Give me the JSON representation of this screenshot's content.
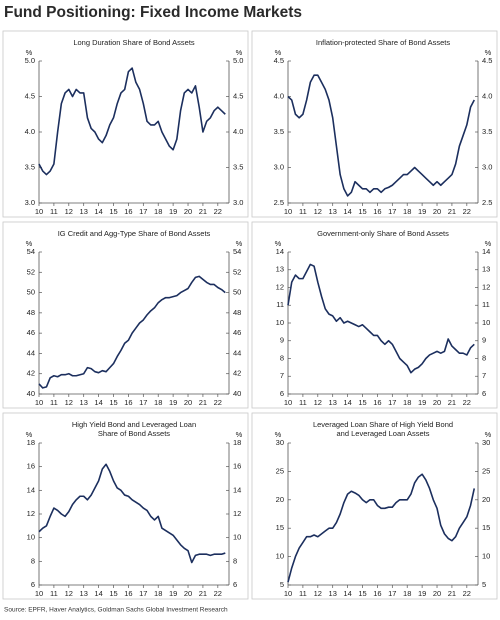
{
  "title": "Fund Positioning: Fixed Income Markets",
  "source": "Source: EPFR, Haver Analytics, Goldman Sachs Global Investment Research",
  "chart_data": [
    {
      "type": "line",
      "title": [
        "Long Duration Share of Bond Assets"
      ],
      "ylabel": "%",
      "color": "#1c2f5e",
      "x": [
        2010,
        2010.25,
        2010.5,
        2010.75,
        2011,
        2011.25,
        2011.5,
        2011.75,
        2012,
        2012.25,
        2012.5,
        2012.75,
        2013,
        2013.25,
        2013.5,
        2013.75,
        2014,
        2014.25,
        2014.5,
        2014.75,
        2015,
        2015.25,
        2015.5,
        2015.75,
        2016,
        2016.25,
        2016.5,
        2016.75,
        2017,
        2017.25,
        2017.5,
        2017.75,
        2018,
        2018.25,
        2018.5,
        2018.75,
        2019,
        2019.25,
        2019.5,
        2019.75,
        2020,
        2020.25,
        2020.5,
        2020.75,
        2021,
        2021.25,
        2021.5,
        2021.75,
        2022,
        2022.25,
        2022.5
      ],
      "values": [
        3.55,
        3.45,
        3.4,
        3.45,
        3.55,
        4.0,
        4.4,
        4.55,
        4.6,
        4.5,
        4.6,
        4.55,
        4.55,
        4.2,
        4.05,
        4.0,
        3.9,
        3.85,
        3.95,
        4.1,
        4.2,
        4.4,
        4.55,
        4.6,
        4.85,
        4.9,
        4.7,
        4.6,
        4.4,
        4.15,
        4.1,
        4.1,
        4.15,
        4.0,
        3.9,
        3.8,
        3.75,
        3.9,
        4.3,
        4.55,
        4.6,
        4.55,
        4.65,
        4.35,
        4.0,
        4.15,
        4.2,
        4.3,
        4.35,
        4.3,
        4.25
      ],
      "xlim": [
        2010,
        2022.75
      ],
      "xticks": [
        {
          "value": 2010,
          "label": "10"
        },
        {
          "value": 2011,
          "label": "11"
        },
        {
          "value": 2012,
          "label": "12"
        },
        {
          "value": 2013,
          "label": "13"
        },
        {
          "value": 2014,
          "label": "14"
        },
        {
          "value": 2015,
          "label": "15"
        },
        {
          "value": 2016,
          "label": "16"
        },
        {
          "value": 2017,
          "label": "17"
        },
        {
          "value": 2018,
          "label": "18"
        },
        {
          "value": 2019,
          "label": "19"
        },
        {
          "value": 2020,
          "label": "20"
        },
        {
          "value": 2021,
          "label": "21"
        },
        {
          "value": 2022,
          "label": "22"
        }
      ],
      "ylim": [
        3,
        5
      ],
      "yticks": [
        {
          "value": 3,
          "label": "3.0"
        },
        3.5,
        {
          "value": 4,
          "label": "4.0"
        },
        4.5,
        {
          "value": 5,
          "label": "5.0"
        }
      ]
    },
    {
      "type": "line",
      "title": [
        "Inflation-protected Share of Bond Assets"
      ],
      "ylabel": "%",
      "color": "#1c2f5e",
      "x": [
        2010,
        2010.25,
        2010.5,
        2010.75,
        2011,
        2011.25,
        2011.5,
        2011.75,
        2012,
        2012.25,
        2012.5,
        2012.75,
        2013,
        2013.25,
        2013.5,
        2013.75,
        2014,
        2014.25,
        2014.5,
        2014.75,
        2015,
        2015.25,
        2015.5,
        2015.75,
        2016,
        2016.25,
        2016.5,
        2016.75,
        2017,
        2017.25,
        2017.5,
        2017.75,
        2018,
        2018.25,
        2018.5,
        2018.75,
        2019,
        2019.25,
        2019.5,
        2019.75,
        2020,
        2020.25,
        2020.5,
        2020.75,
        2021,
        2021.25,
        2021.5,
        2021.75,
        2022,
        2022.25,
        2022.5
      ],
      "values": [
        4.0,
        3.95,
        3.75,
        3.7,
        3.75,
        3.95,
        4.2,
        4.3,
        4.3,
        4.2,
        4.1,
        3.95,
        3.7,
        3.3,
        2.9,
        2.7,
        2.6,
        2.65,
        2.8,
        2.75,
        2.7,
        2.7,
        2.65,
        2.7,
        2.7,
        2.65,
        2.7,
        2.72,
        2.75,
        2.8,
        2.85,
        2.9,
        2.9,
        2.95,
        3.0,
        2.95,
        2.9,
        2.85,
        2.8,
        2.75,
        2.8,
        2.75,
        2.8,
        2.85,
        2.9,
        3.05,
        3.3,
        3.45,
        3.6,
        3.85,
        3.95
      ],
      "xlim": [
        2010,
        2022.75
      ],
      "xticks": [
        {
          "value": 2010,
          "label": "10"
        },
        {
          "value": 2011,
          "label": "11"
        },
        {
          "value": 2012,
          "label": "12"
        },
        {
          "value": 2013,
          "label": "13"
        },
        {
          "value": 2014,
          "label": "14"
        },
        {
          "value": 2015,
          "label": "15"
        },
        {
          "value": 2016,
          "label": "16"
        },
        {
          "value": 2017,
          "label": "17"
        },
        {
          "value": 2018,
          "label": "18"
        },
        {
          "value": 2019,
          "label": "19"
        },
        {
          "value": 2020,
          "label": "20"
        },
        {
          "value": 2021,
          "label": "21"
        },
        {
          "value": 2022,
          "label": "22"
        }
      ],
      "ylim": [
        2.5,
        4.5
      ],
      "yticks": [
        2.5,
        {
          "value": 3,
          "label": "3.0"
        },
        3.5,
        {
          "value": 4,
          "label": "4.0"
        },
        4.5
      ]
    },
    {
      "type": "line",
      "title": [
        "IG Credit and Agg-Type Share of Bond Assets"
      ],
      "ylabel": "%",
      "color": "#1c2f5e",
      "x": [
        2010,
        2010.25,
        2010.5,
        2010.75,
        2011,
        2011.25,
        2011.5,
        2011.75,
        2012,
        2012.25,
        2012.5,
        2012.75,
        2013,
        2013.25,
        2013.5,
        2013.75,
        2014,
        2014.25,
        2014.5,
        2014.75,
        2015,
        2015.25,
        2015.5,
        2015.75,
        2016,
        2016.25,
        2016.5,
        2016.75,
        2017,
        2017.25,
        2017.5,
        2017.75,
        2018,
        2018.25,
        2018.5,
        2018.75,
        2019,
        2019.25,
        2019.5,
        2019.75,
        2020,
        2020.25,
        2020.5,
        2020.75,
        2021,
        2021.25,
        2021.5,
        2021.75,
        2022,
        2022.25,
        2022.5
      ],
      "values": [
        41.0,
        40.6,
        40.7,
        41.6,
        41.8,
        41.7,
        41.9,
        41.9,
        42.0,
        41.8,
        41.8,
        41.9,
        42.0,
        42.6,
        42.5,
        42.2,
        42.1,
        42.3,
        42.2,
        42.6,
        43.0,
        43.7,
        44.3,
        45.0,
        45.3,
        46.0,
        46.5,
        47.0,
        47.3,
        47.8,
        48.2,
        48.5,
        49.0,
        49.3,
        49.5,
        49.5,
        49.6,
        49.7,
        50.0,
        50.2,
        50.4,
        51.0,
        51.5,
        51.6,
        51.3,
        51.0,
        50.8,
        50.8,
        50.5,
        50.3,
        50.0
      ],
      "xlim": [
        2010,
        2022.75
      ],
      "xticks": [
        {
          "value": 2010,
          "label": "10"
        },
        {
          "value": 2011,
          "label": "11"
        },
        {
          "value": 2012,
          "label": "12"
        },
        {
          "value": 2013,
          "label": "13"
        },
        {
          "value": 2014,
          "label": "14"
        },
        {
          "value": 2015,
          "label": "15"
        },
        {
          "value": 2016,
          "label": "16"
        },
        {
          "value": 2017,
          "label": "17"
        },
        {
          "value": 2018,
          "label": "18"
        },
        {
          "value": 2019,
          "label": "19"
        },
        {
          "value": 2020,
          "label": "20"
        },
        {
          "value": 2021,
          "label": "21"
        },
        {
          "value": 2022,
          "label": "22"
        }
      ],
      "ylim": [
        40,
        54
      ],
      "yticks": [
        40,
        42,
        44,
        46,
        48,
        50,
        52,
        54
      ]
    },
    {
      "type": "line",
      "title": [
        "Government-only Share of Bond Assets"
      ],
      "ylabel": "%",
      "color": "#1c2f5e",
      "x": [
        2010,
        2010.25,
        2010.5,
        2010.75,
        2011,
        2011.25,
        2011.5,
        2011.75,
        2012,
        2012.25,
        2012.5,
        2012.75,
        2013,
        2013.25,
        2013.5,
        2013.75,
        2014,
        2014.25,
        2014.5,
        2014.75,
        2015,
        2015.25,
        2015.5,
        2015.75,
        2016,
        2016.25,
        2016.5,
        2016.75,
        2017,
        2017.25,
        2017.5,
        2017.75,
        2018,
        2018.25,
        2018.5,
        2018.75,
        2019,
        2019.25,
        2019.5,
        2019.75,
        2020,
        2020.25,
        2020.5,
        2020.75,
        2021,
        2021.25,
        2021.5,
        2021.75,
        2022,
        2022.25,
        2022.5
      ],
      "values": [
        11.0,
        12.3,
        12.7,
        12.5,
        12.5,
        12.9,
        13.3,
        13.2,
        12.3,
        11.5,
        10.8,
        10.5,
        10.4,
        10.1,
        10.3,
        10.0,
        10.1,
        10.0,
        9.9,
        9.8,
        9.9,
        9.7,
        9.5,
        9.3,
        9.3,
        9.0,
        8.8,
        9.0,
        8.8,
        8.4,
        8.0,
        7.8,
        7.6,
        7.2,
        7.4,
        7.5,
        7.7,
        8.0,
        8.2,
        8.3,
        8.4,
        8.3,
        8.4,
        9.1,
        8.7,
        8.5,
        8.3,
        8.3,
        8.2,
        8.6,
        8.8
      ],
      "xlim": [
        2010,
        2022.75
      ],
      "xticks": [
        {
          "value": 2010,
          "label": "10"
        },
        {
          "value": 2011,
          "label": "11"
        },
        {
          "value": 2012,
          "label": "12"
        },
        {
          "value": 2013,
          "label": "13"
        },
        {
          "value": 2014,
          "label": "14"
        },
        {
          "value": 2015,
          "label": "15"
        },
        {
          "value": 2016,
          "label": "16"
        },
        {
          "value": 2017,
          "label": "17"
        },
        {
          "value": 2018,
          "label": "18"
        },
        {
          "value": 2019,
          "label": "19"
        },
        {
          "value": 2020,
          "label": "20"
        },
        {
          "value": 2021,
          "label": "21"
        },
        {
          "value": 2022,
          "label": "22"
        }
      ],
      "ylim": [
        6,
        14
      ],
      "yticks": [
        6,
        7,
        8,
        9,
        10,
        11,
        12,
        13,
        14
      ]
    },
    {
      "type": "line",
      "title": [
        "High Yield Bond and Leveraged Loan",
        "Share of Bond Assets"
      ],
      "ylabel": "%",
      "color": "#1c2f5e",
      "x": [
        2010,
        2010.25,
        2010.5,
        2010.75,
        2011,
        2011.25,
        2011.5,
        2011.75,
        2012,
        2012.25,
        2012.5,
        2012.75,
        2013,
        2013.25,
        2013.5,
        2013.75,
        2014,
        2014.25,
        2014.5,
        2014.75,
        2015,
        2015.25,
        2015.5,
        2015.75,
        2016,
        2016.25,
        2016.5,
        2016.75,
        2017,
        2017.25,
        2017.5,
        2017.75,
        2018,
        2018.25,
        2018.5,
        2018.75,
        2019,
        2019.25,
        2019.5,
        2019.75,
        2020,
        2020.25,
        2020.5,
        2020.75,
        2021,
        2021.25,
        2021.5,
        2021.75,
        2022,
        2022.25,
        2022.5
      ],
      "values": [
        10.5,
        10.8,
        11.0,
        11.8,
        12.5,
        12.3,
        12.0,
        11.8,
        12.2,
        12.8,
        13.2,
        13.5,
        13.5,
        13.2,
        13.6,
        14.2,
        14.8,
        15.8,
        16.2,
        15.6,
        14.8,
        14.2,
        14.0,
        13.6,
        13.5,
        13.2,
        13.0,
        12.8,
        12.5,
        12.3,
        11.8,
        11.5,
        11.8,
        10.8,
        10.6,
        10.4,
        10.2,
        9.8,
        9.4,
        9.1,
        8.9,
        7.9,
        8.5,
        8.6,
        8.6,
        8.6,
        8.5,
        8.6,
        8.6,
        8.6,
        8.7
      ],
      "xlim": [
        2010,
        2022.75
      ],
      "xticks": [
        {
          "value": 2010,
          "label": "10"
        },
        {
          "value": 2011,
          "label": "11"
        },
        {
          "value": 2012,
          "label": "12"
        },
        {
          "value": 2013,
          "label": "13"
        },
        {
          "value": 2014,
          "label": "14"
        },
        {
          "value": 2015,
          "label": "15"
        },
        {
          "value": 2016,
          "label": "16"
        },
        {
          "value": 2017,
          "label": "17"
        },
        {
          "value": 2018,
          "label": "18"
        },
        {
          "value": 2019,
          "label": "19"
        },
        {
          "value": 2020,
          "label": "20"
        },
        {
          "value": 2021,
          "label": "21"
        },
        {
          "value": 2022,
          "label": "22"
        }
      ],
      "ylim": [
        6,
        18
      ],
      "yticks": [
        6,
        8,
        10,
        12,
        14,
        16,
        18
      ]
    },
    {
      "type": "line",
      "title": [
        "Leveraged Loan Share of High Yield Bond",
        "and Leveraged Loan Assets"
      ],
      "ylabel": "%",
      "color": "#1c2f5e",
      "x": [
        2010,
        2010.25,
        2010.5,
        2010.75,
        2011,
        2011.25,
        2011.5,
        2011.75,
        2012,
        2012.25,
        2012.5,
        2012.75,
        2013,
        2013.25,
        2013.5,
        2013.75,
        2014,
        2014.25,
        2014.5,
        2014.75,
        2015,
        2015.25,
        2015.5,
        2015.75,
        2016,
        2016.25,
        2016.5,
        2016.75,
        2017,
        2017.25,
        2017.5,
        2017.75,
        2018,
        2018.25,
        2018.5,
        2018.75,
        2019,
        2019.25,
        2019.5,
        2019.75,
        2020,
        2020.25,
        2020.5,
        2020.75,
        2021,
        2021.25,
        2021.5,
        2021.75,
        2022,
        2022.25,
        2022.5
      ],
      "values": [
        5.5,
        8.0,
        10.0,
        11.5,
        12.5,
        13.5,
        13.5,
        13.8,
        13.5,
        14.0,
        14.5,
        15.0,
        15.0,
        16.0,
        17.5,
        19.5,
        21.0,
        21.5,
        21.2,
        20.8,
        20.0,
        19.5,
        20.0,
        20.0,
        19.0,
        18.5,
        18.5,
        18.7,
        18.7,
        19.5,
        20.0,
        20.0,
        20.0,
        21.0,
        23.0,
        24.0,
        24.5,
        23.5,
        22.0,
        20.0,
        18.5,
        15.5,
        14.0,
        13.2,
        12.8,
        13.5,
        15.0,
        16.0,
        17.0,
        19.0,
        22.0
      ],
      "xlim": [
        2010,
        2022.75
      ],
      "xticks": [
        {
          "value": 2010,
          "label": "10"
        },
        {
          "value": 2011,
          "label": "11"
        },
        {
          "value": 2012,
          "label": "12"
        },
        {
          "value": 2013,
          "label": "13"
        },
        {
          "value": 2014,
          "label": "14"
        },
        {
          "value": 2015,
          "label": "15"
        },
        {
          "value": 2016,
          "label": "16"
        },
        {
          "value": 2017,
          "label": "17"
        },
        {
          "value": 2018,
          "label": "18"
        },
        {
          "value": 2019,
          "label": "19"
        },
        {
          "value": 2020,
          "label": "20"
        },
        {
          "value": 2021,
          "label": "21"
        },
        {
          "value": 2022,
          "label": "22"
        }
      ],
      "ylim": [
        5,
        30
      ],
      "yticks": [
        5,
        10,
        15,
        20,
        25,
        30
      ]
    }
  ]
}
